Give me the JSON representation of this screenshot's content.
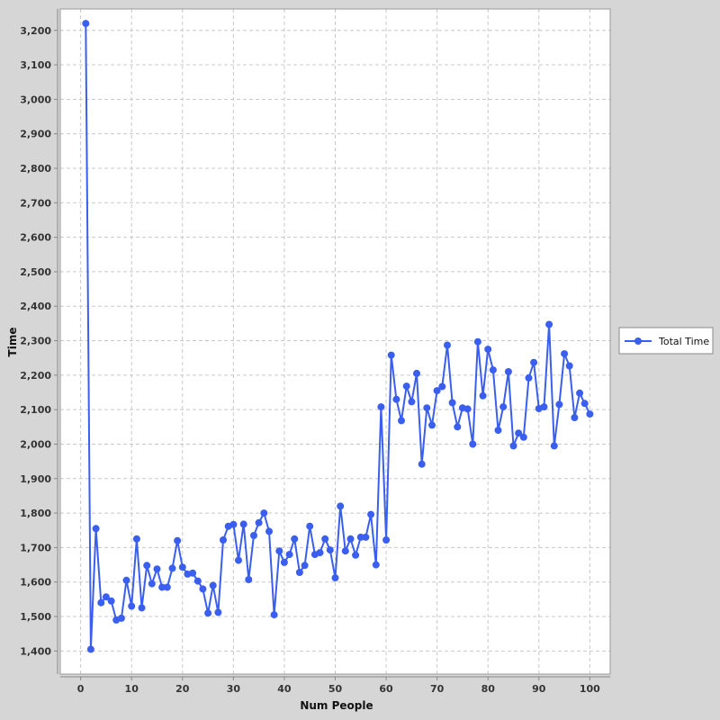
{
  "chart_data": {
    "type": "line",
    "title": "",
    "xlabel": "Num People",
    "ylabel": "Time",
    "xlim": [
      -4,
      104
    ],
    "ylim": [
      1333,
      3262
    ],
    "x_ticks": [
      0,
      10,
      20,
      30,
      40,
      50,
      60,
      70,
      80,
      90,
      100
    ],
    "x_tick_labels": [
      "0",
      "10",
      "20",
      "30",
      "40",
      "50",
      "60",
      "70",
      "80",
      "90",
      "100"
    ],
    "y_ticks": [
      1400,
      1500,
      1600,
      1700,
      1800,
      1900,
      2000,
      2100,
      2200,
      2300,
      2400,
      2500,
      2600,
      2700,
      2800,
      2900,
      3000,
      3100,
      3200
    ],
    "y_tick_labels": [
      "1,400",
      "1,500",
      "1,600",
      "1,700",
      "1,800",
      "1,900",
      "2,000",
      "2,100",
      "2,200",
      "2,300",
      "2,400",
      "2,500",
      "2,600",
      "2,700",
      "2,800",
      "2,900",
      "3,000",
      "3,100",
      "3,200"
    ],
    "grid": true,
    "legend_position": "right",
    "series": [
      {
        "name": "Total Time",
        "color": "#3a5ff0",
        "x": [
          1,
          2,
          3,
          4,
          5,
          6,
          7,
          8,
          9,
          10,
          11,
          12,
          13,
          14,
          15,
          16,
          17,
          18,
          19,
          20,
          21,
          22,
          23,
          24,
          25,
          26,
          27,
          28,
          29,
          30,
          31,
          32,
          33,
          34,
          35,
          36,
          37,
          38,
          39,
          40,
          41,
          42,
          43,
          44,
          45,
          46,
          47,
          48,
          49,
          50,
          51,
          52,
          53,
          54,
          55,
          56,
          57,
          58,
          59,
          60,
          61,
          62,
          63,
          64,
          65,
          66,
          67,
          68,
          69,
          70,
          71,
          72,
          73,
          74,
          75,
          76,
          77,
          78,
          79,
          80,
          81,
          82,
          83,
          84,
          85,
          86,
          87,
          88,
          89,
          90,
          91,
          92,
          93,
          94,
          95,
          96,
          97,
          98,
          99,
          100
        ],
        "values": [
          3220,
          1405,
          1755,
          1540,
          1557,
          1545,
          1490,
          1495,
          1605,
          1530,
          1725,
          1525,
          1648,
          1595,
          1638,
          1585,
          1585,
          1640,
          1720,
          1643,
          1623,
          1626,
          1603,
          1580,
          1510,
          1590,
          1512,
          1722,
          1762,
          1767,
          1663,
          1768,
          1607,
          1735,
          1772,
          1800,
          1747,
          1505,
          1690,
          1657,
          1680,
          1725,
          1628,
          1648,
          1762,
          1680,
          1685,
          1725,
          1693,
          1612,
          1820,
          1690,
          1725,
          1678,
          1730,
          1730,
          1796,
          1650,
          2108,
          1722,
          2258,
          2130,
          2068,
          2168,
          2123,
          2205,
          1942,
          2105,
          2055,
          2155,
          2167,
          2287,
          2120,
          2050,
          2105,
          2102,
          2000,
          2297,
          2140,
          2275,
          2215,
          2040,
          2108,
          2210,
          1995,
          2032,
          2020,
          2192,
          2237,
          2103,
          2108,
          2347,
          1995,
          2115,
          2262,
          2227,
          2077,
          2148,
          2118,
          2087
        ]
      }
    ]
  }
}
